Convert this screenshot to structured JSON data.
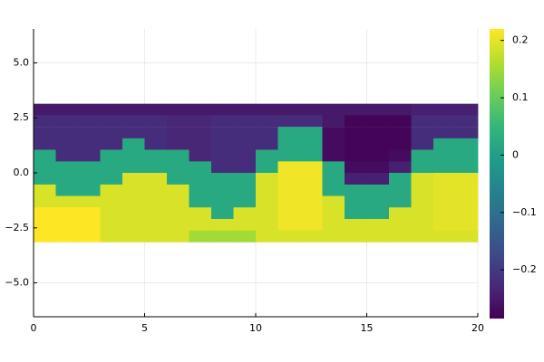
{
  "chart_data": {
    "type": "heatmap",
    "colormap": "viridis",
    "x": [
      0.5,
      1.5,
      2.5,
      3.5,
      4.5,
      5.5,
      6.5,
      7.5,
      8.5,
      9.5,
      10.5,
      11.5,
      12.5,
      13.5,
      14.5,
      15.5,
      16.5,
      17.5,
      18.5,
      19.5
    ],
    "y": [
      2.88,
      2.36,
      1.83,
      1.31,
      0.79,
      0.26,
      -0.26,
      -0.79,
      -1.31,
      -1.83,
      -2.36,
      -2.88
    ],
    "z": [
      [
        -0.25,
        -0.25,
        -0.25,
        -0.25,
        -0.25,
        -0.25,
        -0.25,
        -0.25,
        -0.25,
        -0.25,
        -0.25,
        -0.25,
        -0.25,
        -0.25,
        -0.25,
        -0.25,
        -0.25,
        -0.24,
        -0.24,
        -0.24
      ],
      [
        -0.22,
        -0.22,
        -0.22,
        -0.22,
        -0.22,
        -0.22,
        -0.23,
        -0.23,
        -0.22,
        -0.22,
        -0.22,
        -0.22,
        -0.22,
        -0.25,
        -0.28,
        -0.28,
        -0.28,
        -0.22,
        -0.22,
        -0.22
      ],
      [
        -0.22,
        -0.22,
        -0.22,
        -0.22,
        -0.22,
        -0.22,
        -0.23,
        -0.23,
        -0.22,
        -0.22,
        -0.22,
        0.02,
        0.02,
        -0.27,
        -0.28,
        -0.28,
        -0.28,
        -0.22,
        -0.22,
        -0.22
      ],
      [
        -0.22,
        -0.22,
        -0.22,
        -0.22,
        0.02,
        -0.22,
        -0.23,
        -0.23,
        -0.22,
        -0.22,
        -0.22,
        0.02,
        0.02,
        -0.27,
        -0.28,
        -0.28,
        -0.28,
        -0.22,
        0.02,
        0.02
      ],
      [
        0.02,
        -0.22,
        -0.22,
        0.02,
        0.02,
        0.02,
        0.02,
        -0.23,
        -0.22,
        -0.22,
        0.02,
        0.02,
        0.02,
        -0.27,
        -0.28,
        -0.28,
        -0.27,
        0.02,
        0.02,
        0.02
      ],
      [
        0.02,
        0.02,
        0.02,
        0.02,
        0.02,
        0.02,
        0.02,
        0.02,
        -0.22,
        -0.22,
        0.02,
        0.21,
        0.21,
        0.02,
        -0.27,
        -0.27,
        -0.24,
        0.02,
        0.02,
        0.02
      ],
      [
        0.02,
        0.02,
        0.02,
        0.02,
        0.19,
        0.19,
        0.02,
        0.02,
        0.02,
        0.02,
        0.19,
        0.21,
        0.21,
        0.02,
        -0.24,
        -0.24,
        0.02,
        0.19,
        0.2,
        0.2
      ],
      [
        0.19,
        0.02,
        0.02,
        0.19,
        0.19,
        0.19,
        0.19,
        0.02,
        0.02,
        0.02,
        0.19,
        0.21,
        0.21,
        0.02,
        0.02,
        0.02,
        0.02,
        0.19,
        0.2,
        0.2
      ],
      [
        0.19,
        0.19,
        0.19,
        0.19,
        0.19,
        0.19,
        0.19,
        0.02,
        0.02,
        0.02,
        0.19,
        0.21,
        0.21,
        0.19,
        0.02,
        0.02,
        0.02,
        0.19,
        0.2,
        0.2
      ],
      [
        0.22,
        0.22,
        0.22,
        0.19,
        0.19,
        0.19,
        0.19,
        0.19,
        0.02,
        0.19,
        0.19,
        0.21,
        0.21,
        0.19,
        0.02,
        0.02,
        0.19,
        0.19,
        0.2,
        0.2
      ],
      [
        0.22,
        0.22,
        0.22,
        0.19,
        0.19,
        0.19,
        0.19,
        0.19,
        0.19,
        0.19,
        0.19,
        0.21,
        0.21,
        0.19,
        0.19,
        0.19,
        0.19,
        0.19,
        0.2,
        0.2
      ],
      [
        0.22,
        0.22,
        0.22,
        0.19,
        0.19,
        0.19,
        0.19,
        0.15,
        0.15,
        0.15,
        0.19,
        0.19,
        0.19,
        0.19,
        0.19,
        0.19,
        0.19,
        0.19,
        0.19,
        0.19
      ]
    ],
    "xlim": [
      0,
      20
    ],
    "ylim": [
      -6.54,
      6.54
    ],
    "xticks": [
      0,
      5,
      10,
      15,
      20
    ],
    "yticks": [
      {
        "value": -5.0,
        "label": "−5.0"
      },
      {
        "value": -2.5,
        "label": "−2.5"
      },
      {
        "value": 0.0,
        "label": "0.0"
      },
      2.5,
      {
        "value": 5.0,
        "label": "5.0"
      }
    ],
    "clim": [
      -0.285,
      0.22
    ],
    "cticks": [
      {
        "value": -0.2,
        "label": "−0.2"
      },
      {
        "value": -0.1,
        "label": "−0.1"
      },
      0,
      0.1,
      0.2
    ],
    "grid": true
  }
}
